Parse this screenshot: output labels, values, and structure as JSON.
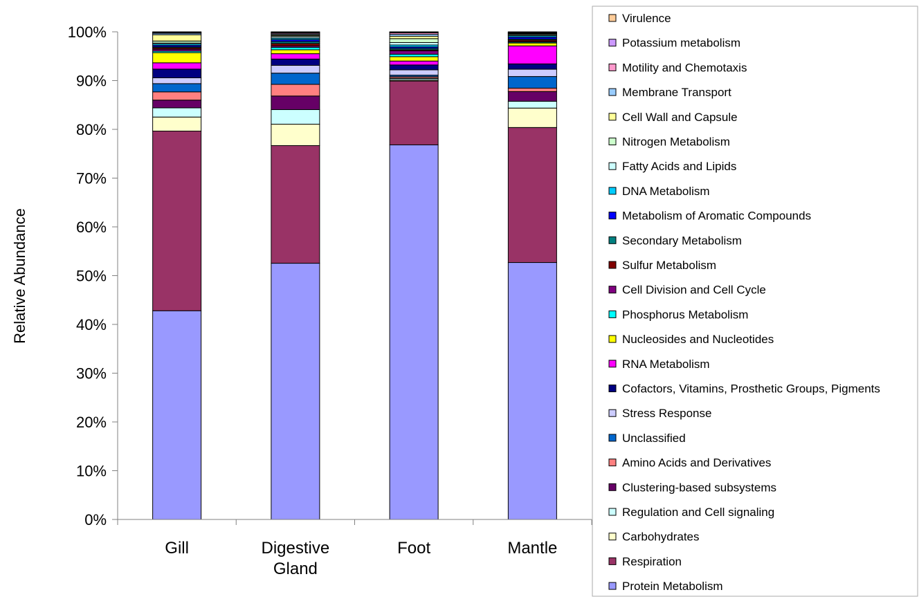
{
  "chart_data": {
    "type": "bar",
    "stacked": true,
    "normalized_percent": true,
    "title": "",
    "xlabel": "",
    "ylabel": "Relative Abundance",
    "ylim": [
      0,
      100
    ],
    "y_ticks": [
      "0%",
      "10%",
      "20%",
      "30%",
      "40%",
      "50%",
      "60%",
      "70%",
      "80%",
      "90%",
      "100%"
    ],
    "grid": false,
    "legend_position": "right",
    "categories": [
      "Gill",
      "Digestive\nGland",
      "Foot",
      "Mantle"
    ],
    "series": [
      {
        "name": "Protein Metabolism",
        "color": "#9999ff",
        "values": [
          43.1,
          52.7,
          76.9,
          52.9
        ]
      },
      {
        "name": "Respiration",
        "color": "#993366",
        "values": [
          37.1,
          24.2,
          13.1,
          27.8
        ]
      },
      {
        "name": "Carbohydrates",
        "color": "#ffffcc",
        "values": [
          2.9,
          4.4,
          0.2,
          4.0
        ]
      },
      {
        "name": "Regulation and Cell signaling",
        "color": "#ccffff",
        "values": [
          1.9,
          3.0,
          0.3,
          1.4
        ]
      },
      {
        "name": "Clustering-based subsystems",
        "color": "#660066",
        "values": [
          1.6,
          2.8,
          0.1,
          2.0
        ]
      },
      {
        "name": "Amino Acids and Derivatives",
        "color": "#ff8080",
        "values": [
          1.7,
          2.4,
          0.3,
          0.7
        ]
      },
      {
        "name": "Unclassified",
        "color": "#0066cc",
        "values": [
          1.7,
          2.3,
          0.3,
          2.4
        ]
      },
      {
        "name": "Stress Response",
        "color": "#ccccff",
        "values": [
          1.2,
          1.6,
          1.1,
          1.5
        ]
      },
      {
        "name": "Cofactors, Vitamins, Prosthetic Groups, Pigments",
        "color": "#000080",
        "values": [
          1.8,
          1.3,
          1.0,
          1.1
        ]
      },
      {
        "name": "RNA Metabolism",
        "color": "#ff00ff",
        "values": [
          1.3,
          1.1,
          0.8,
          3.7
        ]
      },
      {
        "name": "Nucleosides and Nucleotides",
        "color": "#ffff00",
        "values": [
          2.1,
          0.8,
          0.9,
          0.6
        ]
      },
      {
        "name": "Phosphorus Metabolism",
        "color": "#00ffff",
        "values": [
          0.3,
          0.5,
          0.5,
          0.2
        ]
      },
      {
        "name": "Cell Division and Cell Cycle",
        "color": "#800080",
        "values": [
          0.4,
          0.3,
          0.7,
          0.1
        ]
      },
      {
        "name": "Sulfur Metabolism",
        "color": "#800000",
        "values": [
          0.3,
          0.5,
          0.2,
          0.3
        ]
      },
      {
        "name": "Secondary Metabolism",
        "color": "#008080",
        "values": [
          0.2,
          0.4,
          0.3,
          0.2
        ]
      },
      {
        "name": "Metabolism of Aromatic Compounds",
        "color": "#0000ff",
        "values": [
          0.3,
          0.4,
          0.3,
          0.4
        ]
      },
      {
        "name": "DNA Metabolism",
        "color": "#00ccff",
        "values": [
          0.3,
          0.3,
          0.4,
          0.3
        ]
      },
      {
        "name": "Fatty Acids and Lipids",
        "color": "#ccffff",
        "values": [
          0.2,
          0.3,
          0.5,
          0.1
        ]
      },
      {
        "name": "Nitrogen Metabolism",
        "color": "#ccffcc",
        "values": [
          0.4,
          0.2,
          0.8,
          0.2
        ]
      },
      {
        "name": "Cell Wall and Capsule",
        "color": "#ffff99",
        "values": [
          1.3,
          0.2,
          0.5,
          0.1
        ]
      },
      {
        "name": "Membrane Transport",
        "color": "#99ccff",
        "values": [
          0.3,
          0.2,
          0.4,
          0.1
        ]
      },
      {
        "name": "Motility and Chemotaxis",
        "color": "#ff99cc",
        "values": [
          0.1,
          0.2,
          0.3,
          0.1
        ]
      },
      {
        "name": "Potassium metabolism",
        "color": "#cc99ff",
        "values": [
          0.1,
          0.1,
          0.1,
          0.1
        ]
      },
      {
        "name": "Virulence",
        "color": "#ffcc99",
        "values": [
          0.1,
          0.1,
          0.1,
          0.1
        ]
      }
    ]
  }
}
